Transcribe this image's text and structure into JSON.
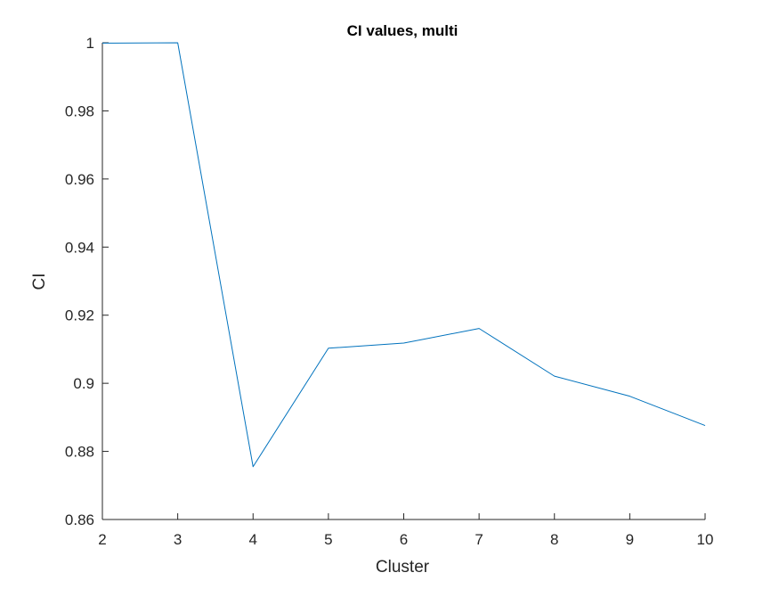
{
  "chart_data": {
    "type": "line",
    "title": "CI values, multi",
    "xlabel": "Cluster",
    "ylabel": "CI",
    "xlim": [
      2,
      10
    ],
    "ylim": [
      0.86,
      1.0
    ],
    "x_ticks": [
      2,
      3,
      4,
      5,
      6,
      7,
      8,
      9,
      10
    ],
    "y_ticks": [
      0.86,
      0.88,
      0.9,
      0.92,
      0.94,
      0.96,
      0.98,
      1.0
    ],
    "x_tick_labels": [
      "2",
      "3",
      "4",
      "5",
      "6",
      "7",
      "8",
      "9",
      "10"
    ],
    "y_tick_labels": [
      "0.86",
      "0.88",
      "0.9",
      "0.92",
      "0.94",
      "0.96",
      "0.98",
      "1"
    ],
    "grid": false,
    "series": [
      {
        "color": "#0072BD",
        "x": [
          2,
          3,
          4,
          5,
          6,
          7,
          8,
          9,
          10
        ],
        "y": [
          0.9999,
          1.0,
          0.8755,
          0.9103,
          0.9118,
          0.9161,
          0.9021,
          0.8962,
          0.8876
        ]
      }
    ],
    "colors": {
      "axis": "#262626",
      "text": "#262626",
      "title": "#000000"
    }
  }
}
